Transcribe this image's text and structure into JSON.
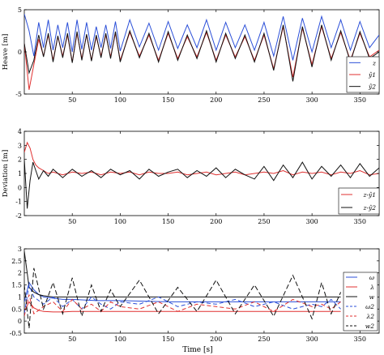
{
  "figure": {
    "x_label": "Time [s]"
  },
  "chart_data": [
    {
      "type": "line",
      "ylabel": "Heave [m]",
      "xlim": [
        0,
        370
      ],
      "ylim": [
        -5,
        5
      ],
      "xticks": [
        50,
        100,
        150,
        200,
        250,
        300,
        350
      ],
      "yticks": [
        -5,
        0,
        5
      ],
      "grid": false,
      "legend_position": "bottom-right",
      "series": [
        {
          "name": "z",
          "color": "#2b4fd8",
          "dash": "",
          "x": [
            0,
            5,
            10,
            15,
            20,
            25,
            30,
            35,
            40,
            45,
            50,
            55,
            60,
            65,
            70,
            75,
            80,
            85,
            90,
            95,
            100,
            110,
            120,
            130,
            140,
            150,
            160,
            170,
            180,
            190,
            200,
            210,
            220,
            230,
            240,
            250,
            260,
            270,
            280,
            290,
            300,
            310,
            320,
            330,
            340,
            350,
            360,
            370
          ],
          "values": [
            4.5,
            2.5,
            -0.5,
            3.5,
            0.5,
            3.8,
            0.2,
            3.2,
            0.5,
            3.5,
            0.0,
            3.8,
            0.3,
            3.5,
            0.2,
            3.0,
            0.5,
            3.2,
            0.4,
            3.6,
            0.1,
            3.8,
            0.6,
            3.4,
            0.2,
            3.6,
            0.4,
            3.2,
            0.5,
            3.8,
            0.2,
            3.5,
            0.5,
            3.2,
            0.2,
            3.5,
            -0.5,
            4.2,
            -1.0,
            4.0,
            0.0,
            4.2,
            0.5,
            3.8,
            0.2,
            3.6,
            0.5,
            2.0
          ]
        },
        {
          "name": "ŷ1",
          "color": "#e03030",
          "dash": "",
          "x": [
            0,
            5,
            10,
            15,
            20,
            25,
            30,
            35,
            40,
            45,
            50,
            55,
            60,
            65,
            70,
            75,
            80,
            85,
            90,
            95,
            100,
            110,
            120,
            130,
            140,
            150,
            160,
            170,
            180,
            190,
            200,
            210,
            220,
            230,
            240,
            250,
            260,
            270,
            280,
            290,
            300,
            310,
            320,
            330,
            340,
            350,
            360,
            370
          ],
          "values": [
            1.0,
            -4.5,
            -1.5,
            1.5,
            -0.5,
            2.0,
            -1.0,
            1.8,
            -0.5,
            2.0,
            -1.2,
            2.2,
            -0.8,
            2.0,
            -1.0,
            1.8,
            -0.5,
            2.0,
            -0.6,
            2.2,
            -1.0,
            2.3,
            -0.5,
            2.0,
            -1.0,
            2.2,
            -0.8,
            1.8,
            -0.6,
            2.3,
            -1.0,
            2.0,
            -0.6,
            1.8,
            -1.0,
            2.0,
            -2.0,
            3.0,
            -3.0,
            2.8,
            -1.5,
            3.0,
            -0.8,
            2.3,
            -1.0,
            2.2,
            -0.6,
            0.2
          ]
        },
        {
          "name": "ŷ2",
          "color": "#111111",
          "dash": "",
          "x": [
            0,
            5,
            10,
            15,
            20,
            25,
            30,
            35,
            40,
            45,
            50,
            55,
            60,
            65,
            70,
            75,
            80,
            85,
            90,
            95,
            100,
            110,
            120,
            130,
            140,
            150,
            160,
            170,
            180,
            190,
            200,
            210,
            220,
            230,
            240,
            250,
            260,
            270,
            280,
            290,
            300,
            310,
            320,
            330,
            340,
            350,
            360,
            370
          ],
          "values": [
            1.0,
            -2.5,
            -1.0,
            2.0,
            -0.6,
            2.2,
            -1.2,
            1.9,
            -0.7,
            2.2,
            -1.3,
            2.4,
            -1.0,
            2.1,
            -1.1,
            2.0,
            -0.7,
            2.2,
            -0.8,
            2.4,
            -1.2,
            2.5,
            -0.7,
            2.2,
            -1.2,
            2.4,
            -1.0,
            2.0,
            -0.8,
            2.5,
            -1.2,
            2.2,
            -0.8,
            2.0,
            -1.2,
            2.2,
            -2.2,
            3.2,
            -3.5,
            3.0,
            -1.8,
            3.2,
            -1.0,
            2.5,
            -1.2,
            2.4,
            -0.8,
            0.0
          ]
        }
      ]
    },
    {
      "type": "line",
      "ylabel": "Deviation [m]",
      "xlim": [
        0,
        370
      ],
      "ylim": [
        -2,
        4
      ],
      "xticks": [
        50,
        100,
        150,
        200,
        250,
        300,
        350
      ],
      "yticks": [
        -2,
        -1,
        0,
        1,
        2,
        3,
        4
      ],
      "grid": false,
      "legend_position": "bottom-right",
      "series": [
        {
          "name": "z-ŷ1",
          "color": "#e03030",
          "dash": "",
          "x": [
            0,
            3,
            6,
            9,
            12,
            15,
            20,
            25,
            30,
            40,
            50,
            60,
            70,
            80,
            90,
            100,
            110,
            120,
            130,
            140,
            150,
            160,
            170,
            180,
            190,
            200,
            210,
            220,
            230,
            240,
            250,
            260,
            270,
            280,
            290,
            300,
            310,
            320,
            330,
            340,
            350,
            360,
            370
          ],
          "values": [
            2.5,
            3.2,
            2.8,
            2.0,
            1.6,
            1.4,
            1.2,
            1.0,
            1.1,
            0.9,
            1.1,
            1.0,
            1.1,
            0.9,
            1.1,
            1.0,
            1.1,
            0.9,
            1.1,
            1.0,
            1.0,
            1.1,
            0.9,
            1.0,
            1.1,
            0.9,
            1.0,
            1.1,
            0.9,
            1.0,
            1.1,
            1.0,
            1.2,
            0.9,
            1.1,
            1.0,
            1.1,
            0.9,
            1.1,
            1.0,
            1.2,
            0.9,
            1.0
          ]
        },
        {
          "name": "z-ŷ2",
          "color": "#111111",
          "dash": "",
          "x": [
            0,
            3,
            6,
            9,
            12,
            15,
            20,
            25,
            30,
            40,
            50,
            60,
            70,
            80,
            90,
            100,
            110,
            120,
            130,
            140,
            150,
            160,
            170,
            180,
            190,
            200,
            210,
            220,
            230,
            240,
            250,
            260,
            270,
            280,
            290,
            300,
            310,
            320,
            330,
            340,
            350,
            360,
            370
          ],
          "values": [
            2.0,
            -1.5,
            0.5,
            1.8,
            1.2,
            0.6,
            1.2,
            0.8,
            1.3,
            0.7,
            1.3,
            0.8,
            1.2,
            0.7,
            1.3,
            0.9,
            1.2,
            0.6,
            1.3,
            0.8,
            1.1,
            1.3,
            0.7,
            1.2,
            0.8,
            1.4,
            0.7,
            1.3,
            0.9,
            0.6,
            1.5,
            0.5,
            1.6,
            0.7,
            1.8,
            0.6,
            1.5,
            0.8,
            1.6,
            0.7,
            1.7,
            0.8,
            1.4
          ]
        }
      ]
    },
    {
      "type": "line",
      "ylabel": "",
      "xlim": [
        0,
        370
      ],
      "ylim": [
        -0.5,
        3
      ],
      "xticks": [
        50,
        100,
        150,
        200,
        250,
        300,
        350
      ],
      "yticks": [
        -0.5,
        0,
        0.5,
        1,
        1.5,
        2,
        2.5,
        3
      ],
      "grid": false,
      "legend_position": "right",
      "series": [
        {
          "name": "ω",
          "color": "#2b4fd8",
          "dash": "",
          "x": [
            0,
            5,
            10,
            15,
            20,
            30,
            40,
            50,
            75,
            100,
            150,
            200,
            250,
            300,
            330
          ],
          "values": [
            0.8,
            1.6,
            1.3,
            1.1,
            1.0,
            0.95,
            0.9,
            0.9,
            0.85,
            0.85,
            0.8,
            0.8,
            0.8,
            0.8,
            0.8
          ]
        },
        {
          "name": "λ",
          "color": "#e03030",
          "dash": "",
          "x": [
            0,
            5,
            10,
            15,
            20,
            30,
            40,
            50,
            75,
            100,
            150,
            200,
            250,
            300,
            330
          ],
          "values": [
            0.4,
            0.8,
            0.55,
            0.45,
            0.4,
            0.38,
            0.38,
            0.4,
            0.4,
            0.4,
            0.4,
            0.4,
            0.4,
            0.4,
            0.4
          ]
        },
        {
          "name": "w",
          "color": "#111111",
          "dash": "",
          "x": [
            0,
            5,
            10,
            15,
            20,
            30,
            40,
            50,
            75,
            100,
            150,
            200,
            250,
            300,
            330
          ],
          "values": [
            2.9,
            1.4,
            1.2,
            1.1,
            1.05,
            1.0,
            1.0,
            1.0,
            1.0,
            1.0,
            1.0,
            1.0,
            1.0,
            1.0,
            1.0
          ]
        },
        {
          "name": "ω2",
          "color": "#2b4fd8",
          "dash": "5,3",
          "x": [
            0,
            5,
            10,
            20,
            30,
            40,
            50,
            60,
            70,
            80,
            90,
            100,
            120,
            140,
            160,
            180,
            200,
            220,
            240,
            260,
            280,
            300,
            310,
            320,
            330
          ],
          "values": [
            0.3,
            1.5,
            1.0,
            0.7,
            1.0,
            0.6,
            0.9,
            0.5,
            1.0,
            0.7,
            0.5,
            0.8,
            0.7,
            1.0,
            0.6,
            0.8,
            0.7,
            0.9,
            0.6,
            0.8,
            0.5,
            0.7,
            0.6,
            0.9,
            0.5
          ]
        },
        {
          "name": "λ2",
          "color": "#e03030",
          "dash": "5,3",
          "x": [
            0,
            5,
            10,
            20,
            30,
            40,
            50,
            60,
            70,
            80,
            90,
            100,
            120,
            140,
            160,
            180,
            200,
            220,
            240,
            260,
            280,
            300,
            310,
            320,
            330
          ],
          "values": [
            0.2,
            1.1,
            0.3,
            0.6,
            0.8,
            0.4,
            0.9,
            0.5,
            0.7,
            0.4,
            0.8,
            0.6,
            0.5,
            0.8,
            0.4,
            0.7,
            0.6,
            0.5,
            0.8,
            0.4,
            0.9,
            0.6,
            0.7,
            0.5,
            0.8
          ]
        },
        {
          "name": "w2",
          "color": "#111111",
          "dash": "6,3",
          "x": [
            0,
            5,
            10,
            20,
            30,
            40,
            50,
            60,
            70,
            80,
            90,
            100,
            120,
            140,
            160,
            180,
            200,
            220,
            240,
            260,
            280,
            300,
            310,
            320,
            330
          ],
          "values": [
            1.5,
            -0.3,
            2.2,
            0.5,
            1.6,
            0.3,
            1.8,
            0.2,
            1.5,
            0.4,
            1.3,
            0.6,
            1.7,
            0.3,
            1.4,
            0.4,
            1.7,
            0.3,
            1.5,
            0.2,
            1.9,
            0.1,
            1.6,
            0.3,
            1.2
          ]
        }
      ]
    }
  ]
}
